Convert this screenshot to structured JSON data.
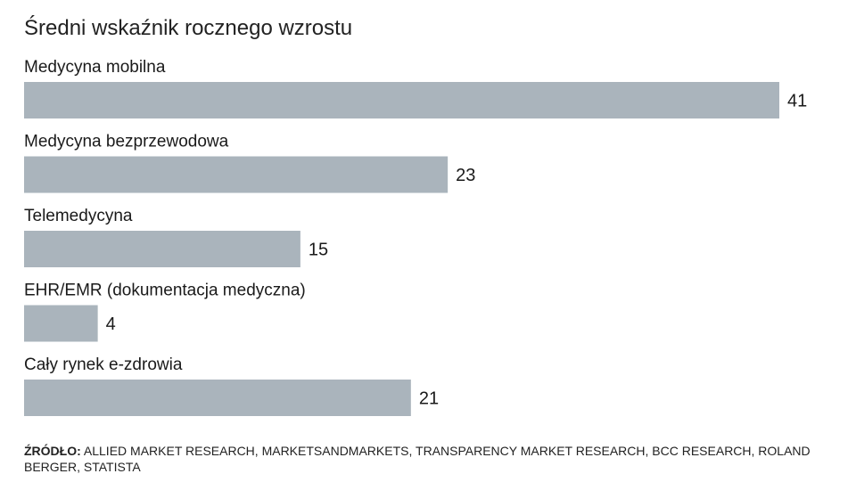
{
  "chart_data": {
    "type": "bar",
    "orientation": "horizontal",
    "title": "Średni wskaźnik rocznego wzrostu",
    "categories": [
      "Medycyna mobilna",
      "Medycyna bezprzewodowa",
      "Telemedycyna",
      "EHR/EMR (dokumentacja medyczna)",
      "Cały rynek e-zdrowia"
    ],
    "values": [
      41,
      23,
      15,
      4,
      21
    ],
    "xlim": [
      0,
      41
    ],
    "bar_color": "#aab4bc",
    "grid": false
  },
  "source": {
    "label": "ŹRÓDŁO:",
    "text": "ALLIED MARKET RESEARCH, MARKETSANDMARKETS, TRANSPARENCY MARKET RESEARCH, BCC RESEARCH, ROLAND BERGER, STATISTA"
  }
}
